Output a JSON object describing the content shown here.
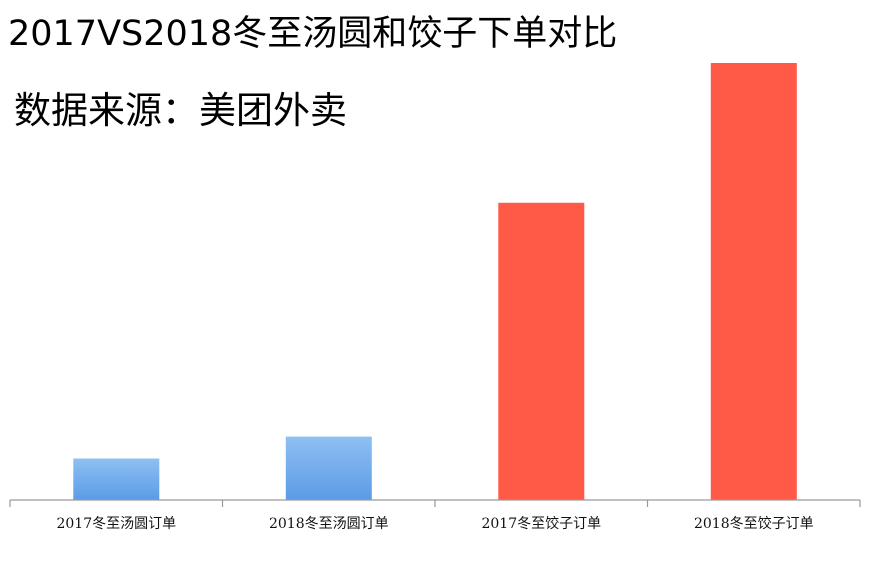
{
  "chart_data": {
    "type": "bar",
    "title": "2017VS2018冬至汤圆和饺子下单对比",
    "subtitle": "数据来源：美团外卖",
    "categories": [
      "2017冬至汤圆订单",
      "2018冬至汤圆订单",
      "2017冬至饺子订单",
      "2018冬至饺子订单"
    ],
    "values": [
      9.5,
      14.5,
      68,
      100
    ],
    "ylim": [
      0,
      100
    ],
    "grid": false,
    "colors": {
      "tangyuan": "#5b9be6",
      "tangyuan_light": "#8ec0f2",
      "jiaozi": "#ff5a47",
      "axis": "#9a9a9a"
    },
    "bar_color_keys": [
      "tangyuan",
      "tangyuan",
      "jiaozi",
      "jiaozi"
    ]
  }
}
